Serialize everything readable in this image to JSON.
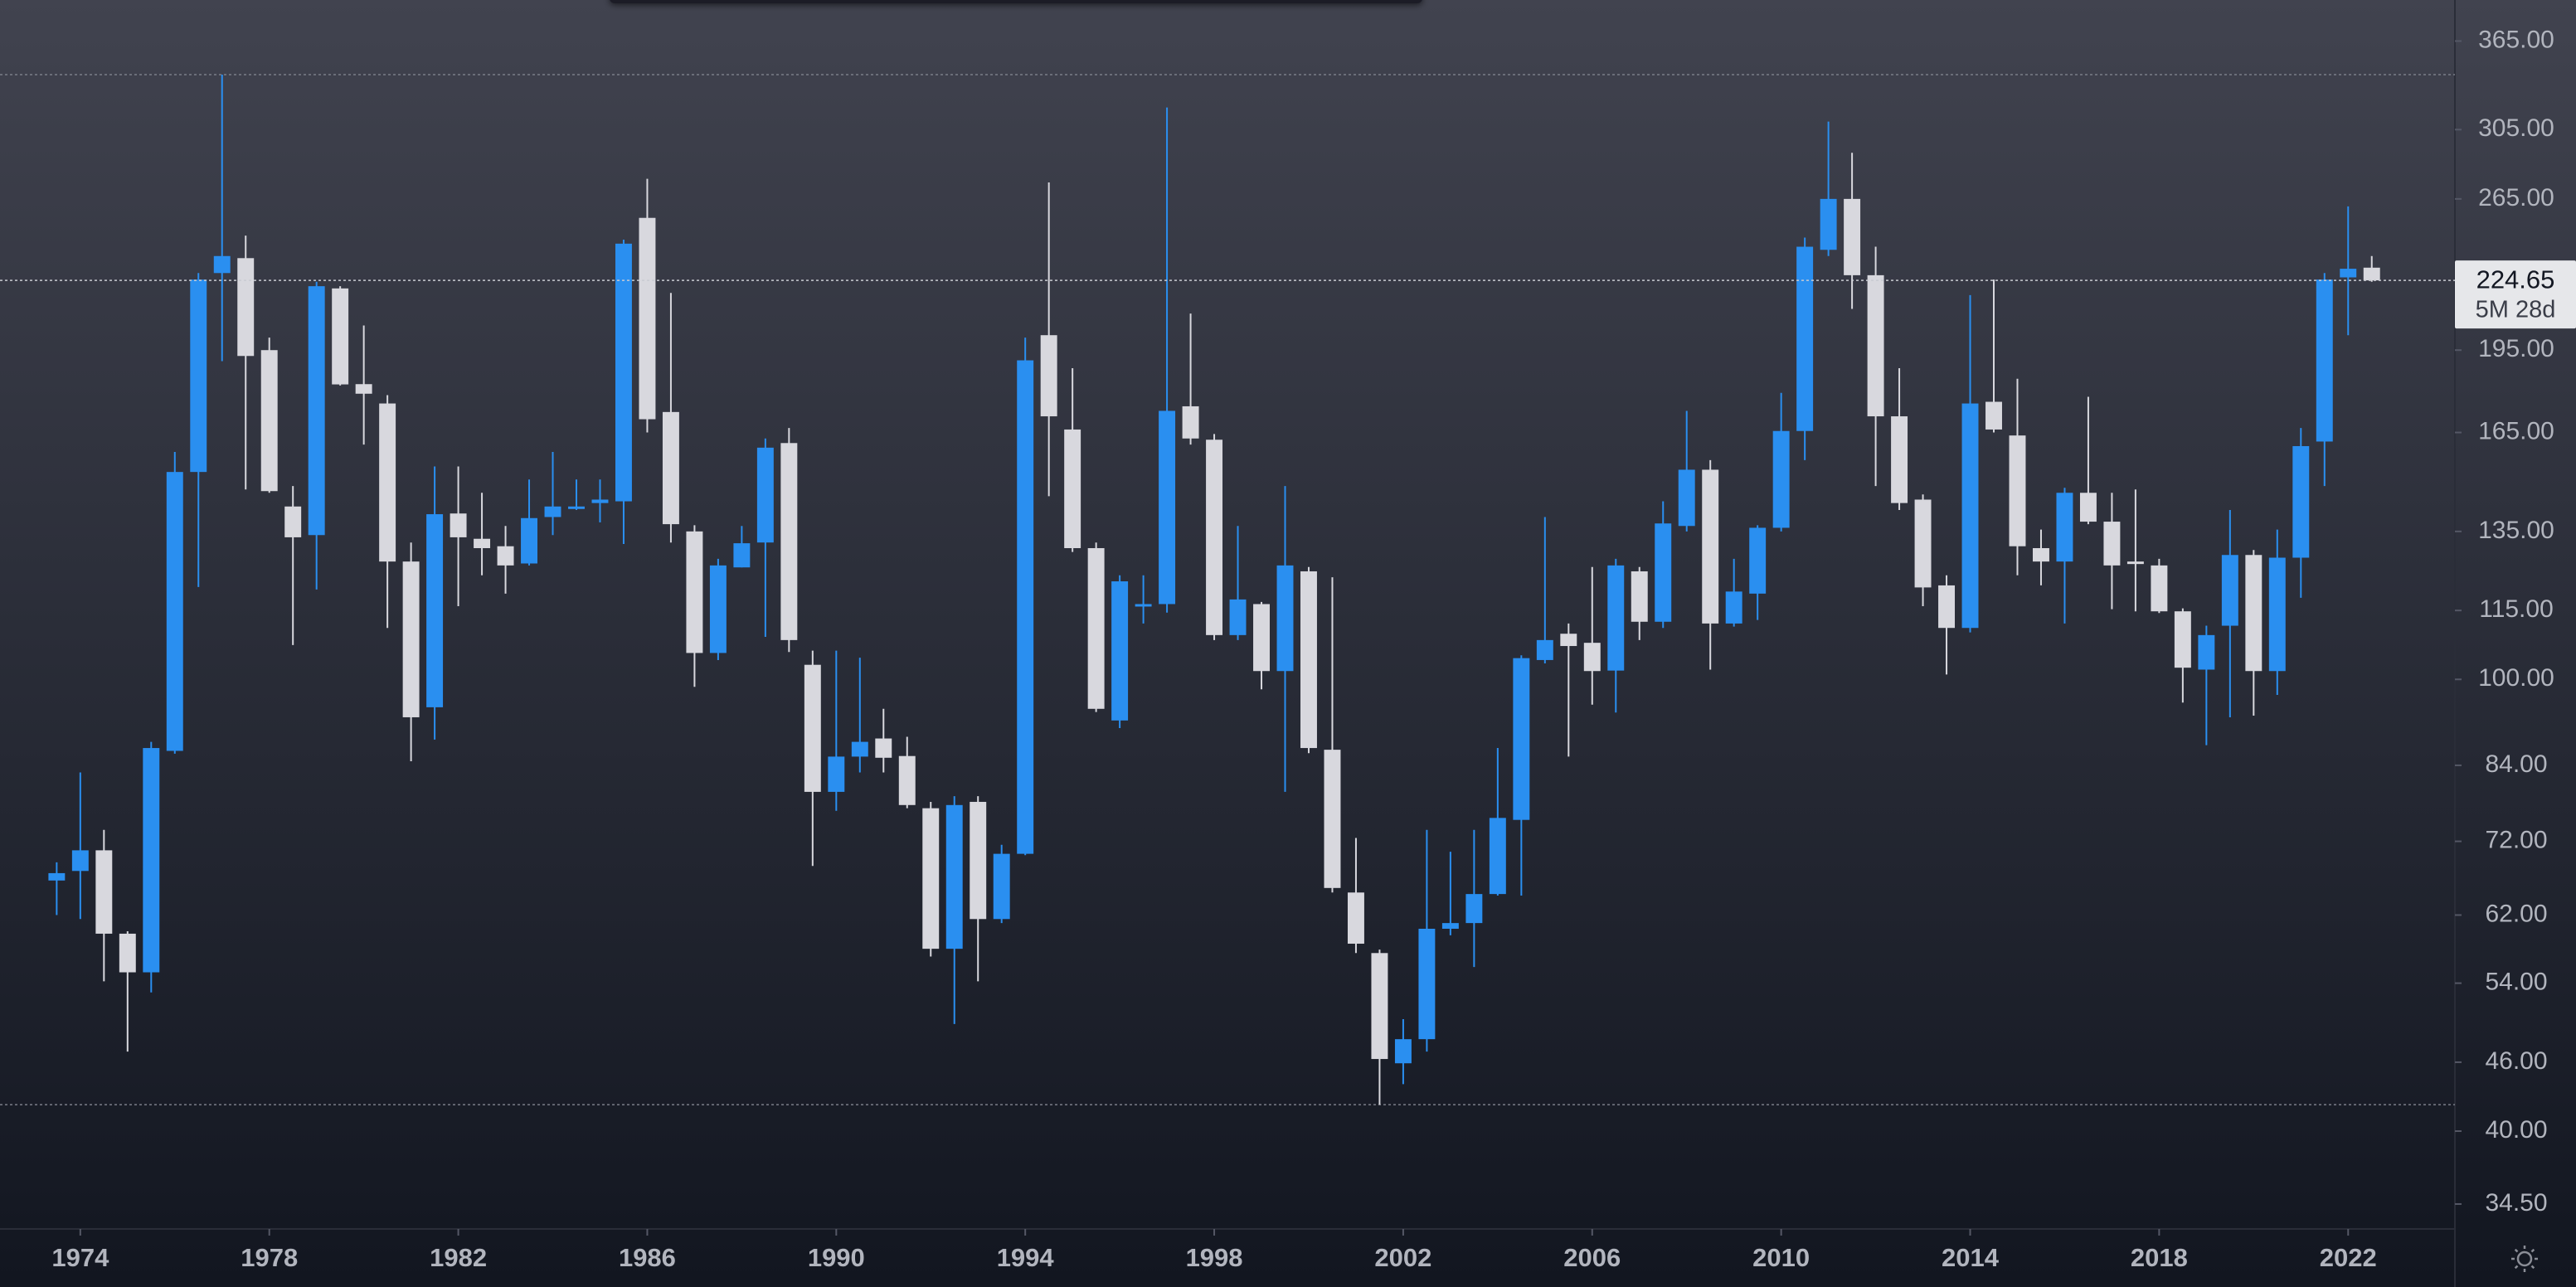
{
  "chart_data": {
    "type": "candlestick",
    "x": [
      1973.5,
      1974,
      1974.5,
      1975,
      1975.5,
      1976,
      1976.5,
      1977,
      1977.5,
      1978,
      1978.5,
      1979,
      1979.5,
      1980,
      1980.5,
      1981,
      1981.5,
      1982,
      1982.5,
      1983,
      1983.5,
      1984,
      1984.5,
      1985,
      1985.5,
      1986,
      1986.5,
      1987,
      1987.5,
      1988,
      1988.5,
      1989,
      1989.5,
      1990,
      1990.5,
      1991,
      1991.5,
      1992,
      1992.5,
      1993,
      1993.5,
      1994,
      1994.5,
      1995,
      1995.5,
      1996,
      1996.5,
      1997,
      1997.5,
      1998,
      1998.5,
      1999,
      1999.5,
      2000,
      2000.5,
      2001,
      2001.5,
      2002,
      2002.5,
      2003,
      2003.5,
      2004,
      2004.5,
      2005,
      2005.5,
      2006,
      2006.5,
      2007,
      2007.5,
      2008,
      2008.5,
      2009,
      2009.5,
      2010,
      2010.5,
      2011,
      2011.5,
      2012,
      2012.5,
      2013,
      2013.5,
      2014,
      2014.5,
      2015,
      2015.5,
      2016,
      2016.5,
      2017,
      2017.5,
      2018,
      2018.5,
      2019,
      2019.5,
      2020,
      2020.5,
      2021,
      2021.5,
      2022,
      2022.5
    ],
    "open": [
      66.5,
      67.8,
      70.7,
      59.7,
      55.2,
      86.5,
      152.3,
      228,
      235,
      195,
      142,
      134,
      221,
      182,
      175,
      127,
      94.5,
      140,
      133,
      131,
      126.5,
      139,
      141.5,
      143,
      143.5,
      255,
      172,
      135,
      105.5,
      125.5,
      132,
      161.5,
      103,
      79.6,
      85.5,
      88.7,
      85.6,
      77,
      57.9,
      78,
      61.5,
      70.2,
      201,
      166,
      130.5,
      92,
      116,
      116.5,
      174,
      162.6,
      109.4,
      116.5,
      101.7,
      124.5,
      86.7,
      64.9,
      57.4,
      45.9,
      48.2,
      60.3,
      61,
      64.7,
      75.2,
      104,
      109.7,
      107.7,
      101.8,
      124.5,
      112.4,
      136.5,
      153,
      112,
      119,
      136,
      165.5,
      239,
      265,
      227,
      170.5,
      144,
      121,
      111,
      175.6,
      164,
      130.5,
      127,
      146,
      137.7,
      127,
      126,
      114.8,
      102,
      111.5,
      128.7,
      101.7,
      128,
      162,
      226,
      230.5
    ],
    "high": [
      69,
      82.8,
      73.7,
      60,
      88.1,
      158.6,
      228,
      341,
      246,
      200,
      148,
      224,
      222,
      205,
      178,
      132,
      154,
      154,
      146,
      136.5,
      150,
      158.6,
      150,
      150,
      244,
      276,
      219,
      136.7,
      127.7,
      136.5,
      163,
      166.5,
      106,
      106,
      104.5,
      94.2,
      89,
      78,
      78.9,
      78.9,
      71.5,
      200,
      274,
      188,
      132,
      123.5,
      123.5,
      319,
      210,
      164.5,
      136.5,
      117,
      148,
      125.6,
      123,
      72.5,
      57.8,
      50.2,
      73.7,
      70.5,
      73.7,
      87,
      105,
      139,
      112,
      125.6,
      127.7,
      125.6,
      143.5,
      172.4,
      156,
      127.7,
      136.7,
      178.8,
      245,
      310,
      291,
      240.5,
      188,
      145.5,
      123.5,
      218,
      225,
      184,
      135.5,
      147.5,
      177.4,
      146,
      147,
      127.7,
      115.5,
      111.5,
      141,
      130,
      135.5,
      166.5,
      228,
      261,
      236
    ],
    "low": [
      62,
      61.5,
      54.2,
      47,
      53,
      86,
      120.6,
      190.7,
      147,
      146,
      107.2,
      120,
      181.5,
      161,
      111,
      84.7,
      88.5,
      116,
      123.5,
      119,
      126,
      134,
      141,
      137.5,
      131.6,
      165,
      132,
      98.5,
      104,
      125.5,
      109,
      105.7,
      68.5,
      76.6,
      82.8,
      82.8,
      77,
      57,
      49.7,
      54.2,
      61,
      70,
      145,
      129.5,
      93.6,
      90.6,
      112,
      114.5,
      161,
      108.3,
      108.3,
      98,
      79.6,
      86.1,
      64.9,
      57.4,
      42.2,
      44,
      47,
      59.5,
      55.8,
      64.5,
      64.5,
      103.3,
      85.5,
      95,
      93.5,
      108.3,
      111,
      135,
      102,
      111.3,
      112.8,
      135,
      156,
      236,
      212,
      148,
      141,
      116,
      101,
      110,
      165,
      123.5,
      121,
      112,
      137,
      115.3,
      114.8,
      114.4,
      95.4,
      87.5,
      92.6,
      92.9,
      96.9,
      118,
      148,
      201,
      224
    ],
    "close": [
      67.5,
      70.7,
      59.7,
      55.2,
      87,
      152.3,
      225,
      236,
      192.7,
      146.5,
      133.4,
      222,
      181.9,
      178.5,
      127,
      92.6,
      139.8,
      133.4,
      130.5,
      126,
      138.7,
      142,
      142,
      144,
      242,
      169.5,
      137,
      105.5,
      126,
      131.8,
      160,
      108.3,
      79.6,
      85.5,
      88.1,
      85.3,
      77.5,
      57.9,
      77.5,
      61.5,
      70.2,
      191,
      170.5,
      130.5,
      94.2,
      122,
      116.5,
      172.4,
      163,
      109.4,
      117.6,
      101.7,
      126,
      87,
      65.5,
      58.5,
      46.3,
      48.2,
      60.3,
      61,
      64.7,
      75.5,
      104.4,
      108.3,
      107,
      101.7,
      126,
      112.4,
      137.2,
      153,
      112,
      119.5,
      136,
      165.5,
      240.5,
      265,
      227,
      170.5,
      143,
      120.5,
      111,
      175,
      166,
      131,
      127,
      146,
      137.7,
      126,
      126.5,
      114.8,
      102.4,
      109.4,
      128.7,
      101.7,
      128,
      160.5,
      225,
      230,
      224.65
    ],
    "up_color": "#2a8ff0",
    "down_color": "#d8d8de",
    "countdown": "5M 28d",
    "log_scale": true,
    "xlim": [
      1972.3,
      2024.26
    ],
    "xticks": [
      1974,
      1978,
      1982,
      1986,
      1990,
      1994,
      1998,
      2002,
      2006,
      2010,
      2014,
      2018,
      2022
    ],
    "ylim": [
      32.8,
      396.7
    ],
    "yticks": [
      {
        "value": 34.5,
        "label": "34.50"
      },
      {
        "value": 40,
        "label": "40.00"
      },
      {
        "value": 46,
        "label": "46.00"
      },
      {
        "value": 54,
        "label": "54.00"
      },
      {
        "value": 62,
        "label": "62.00"
      },
      {
        "value": 72,
        "label": "72.00"
      },
      {
        "value": 84,
        "label": "84.00"
      },
      {
        "value": 100,
        "label": "100.00"
      },
      {
        "value": 115,
        "label": "115.00"
      },
      {
        "value": 135,
        "label": "135.00"
      },
      {
        "value": 165,
        "label": "165.00"
      },
      {
        "value": 195,
        "label": "195.00"
      },
      {
        "value": 265,
        "label": "265.00"
      },
      {
        "value": 305,
        "label": "305.00"
      },
      {
        "value": 365,
        "label": "365.00"
      }
    ]
  }
}
